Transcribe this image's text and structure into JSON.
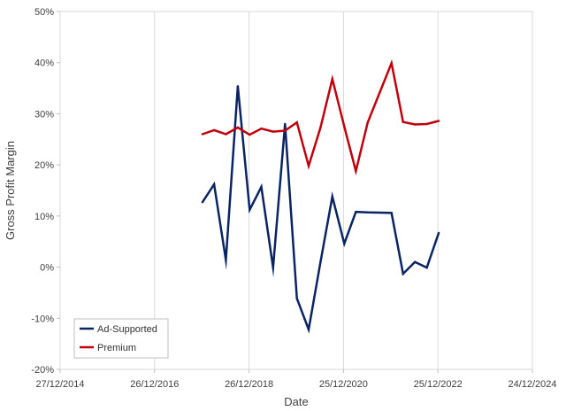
{
  "chart_data": {
    "type": "line",
    "xlabel": "Date",
    "ylabel": "Gross Profit Margin",
    "xlim": [
      "2014-12-27",
      "2024-12-24"
    ],
    "ylim": [
      -20,
      50
    ],
    "x_ticks": [
      "27/12/2014",
      "26/12/2016",
      "26/12/2018",
      "25/12/2020",
      "25/12/2022",
      "24/12/2024"
    ],
    "y_ticks": [
      "50%",
      "40%",
      "30%",
      "20%",
      "10%",
      "0%",
      "-10%",
      "-20%"
    ],
    "y_unit": "%",
    "grid": "vertical",
    "legend_position": "bottom-left",
    "series": [
      {
        "name": "Ad-Supported",
        "color": "#0a2463",
        "x": [
          "2017-12-31",
          "2018-03-31",
          "2018-06-30",
          "2018-09-30",
          "2018-12-31",
          "2019-03-31",
          "2019-06-30",
          "2019-09-30",
          "2019-12-31",
          "2020-03-31",
          "2020-06-30",
          "2020-09-30",
          "2020-12-31",
          "2021-03-31",
          "2021-06-30",
          "2021-12-31",
          "2022-03-31",
          "2022-06-30",
          "2022-09-30",
          "2022-12-31"
        ],
        "values": [
          12.7,
          16.2,
          1.4,
          35.4,
          11.2,
          15.7,
          -0.1,
          28.0,
          -6.1,
          -12.2,
          1.0,
          13.8,
          4.6,
          10.8,
          10.7,
          10.6,
          -1.3,
          1.0,
          -0.1,
          6.7
        ]
      },
      {
        "name": "Premium",
        "color": "#c0000c",
        "x": [
          "2017-12-31",
          "2018-03-31",
          "2018-06-30",
          "2018-09-30",
          "2018-12-31",
          "2019-03-31",
          "2019-06-30",
          "2019-09-30",
          "2019-12-31",
          "2020-03-31",
          "2020-06-30",
          "2020-09-30",
          "2020-12-31",
          "2021-03-31",
          "2021-06-30",
          "2021-12-31",
          "2022-03-31",
          "2022-06-30",
          "2022-09-30",
          "2022-12-31"
        ],
        "values": [
          26.0,
          26.8,
          26.0,
          27.3,
          25.9,
          27.1,
          26.5,
          26.7,
          28.3,
          19.8,
          27.3,
          36.8,
          27.5,
          18.8,
          28.3,
          39.9,
          28.4,
          27.9,
          28.0,
          28.6
        ]
      }
    ]
  }
}
